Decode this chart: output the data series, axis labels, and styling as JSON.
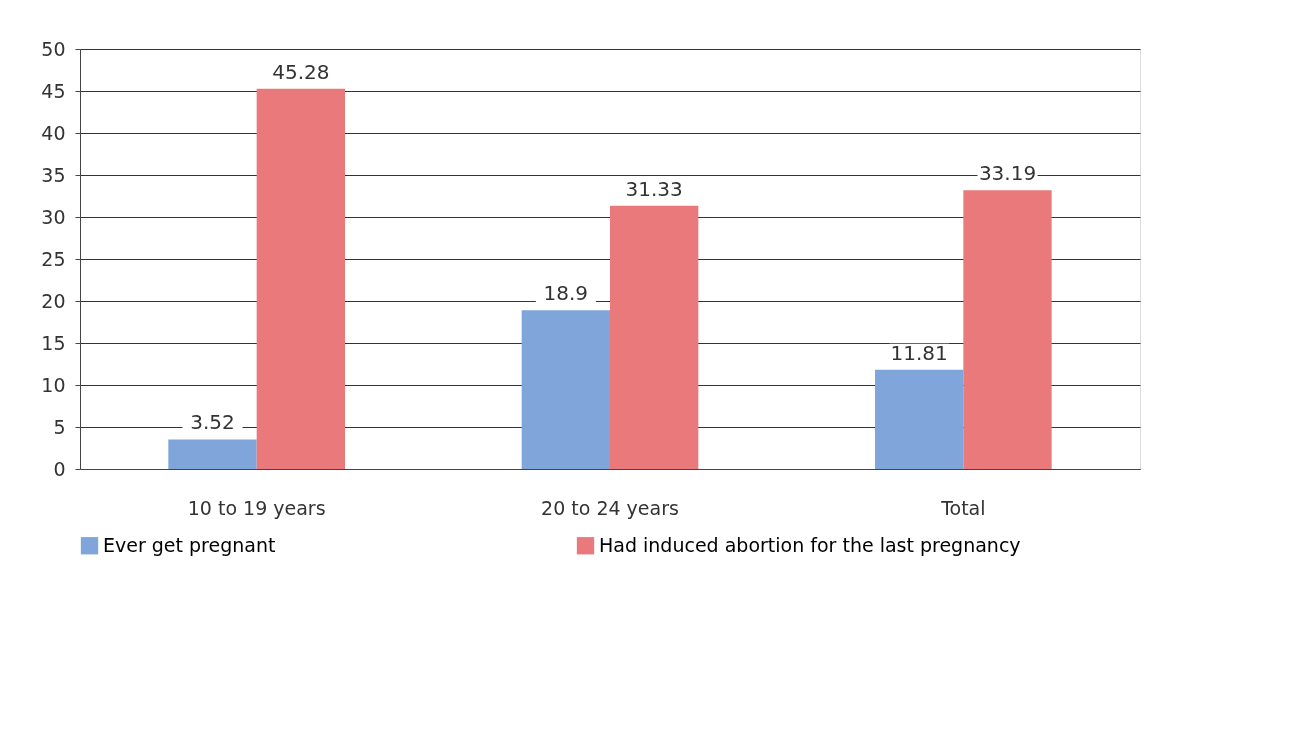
{
  "chart_data": {
    "type": "bar",
    "categories": [
      "10 to 19 years",
      "20 to 24 years",
      "Total"
    ],
    "series": [
      {
        "name": "Ever get pregnant",
        "color": "#7fa5da",
        "values": [
          3.52,
          18.9,
          11.81
        ]
      },
      {
        "name": "Had induced abortion for the last pregnancy",
        "color": "#e9797a",
        "values": [
          45.28,
          31.33,
          33.19
        ]
      }
    ],
    "ylim": [
      0,
      50
    ],
    "yticks": [
      0,
      5,
      10,
      15,
      20,
      25,
      30,
      35,
      40,
      45,
      50
    ],
    "grid": "y",
    "legend": "bottom",
    "data_labels": true
  }
}
